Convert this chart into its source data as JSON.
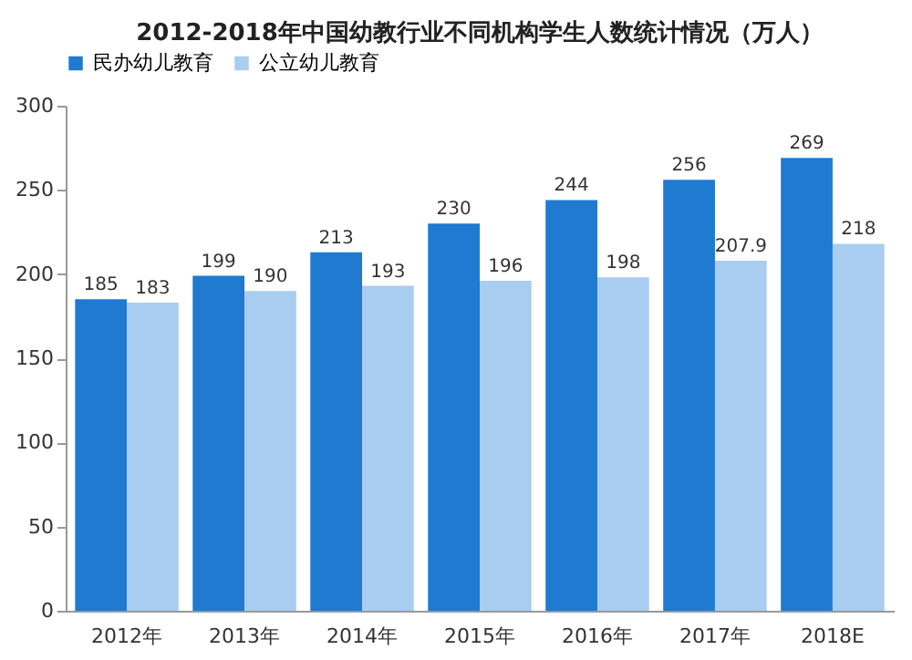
{
  "chart_data": {
    "type": "bar",
    "title": "2012-2018年中国幼教行业不同机构学生人数统计情况（万人）",
    "categories": [
      "2012年",
      "2013年",
      "2014年",
      "2015年",
      "2016年",
      "2017年",
      "2018E"
    ],
    "series": [
      {
        "name": "民办幼儿教育",
        "color": "#1f7ad0",
        "values": [
          185,
          199,
          213,
          230,
          244,
          256,
          269
        ]
      },
      {
        "name": "公立幼儿教育",
        "color": "#a8cdf0",
        "values": [
          183,
          190,
          193,
          196,
          198,
          207.9,
          218
        ]
      }
    ],
    "ylim": [
      0,
      300
    ],
    "yticks": [
      0,
      50,
      100,
      150,
      200,
      250,
      300
    ],
    "grid": false,
    "legend": "top",
    "data_labels": true
  }
}
